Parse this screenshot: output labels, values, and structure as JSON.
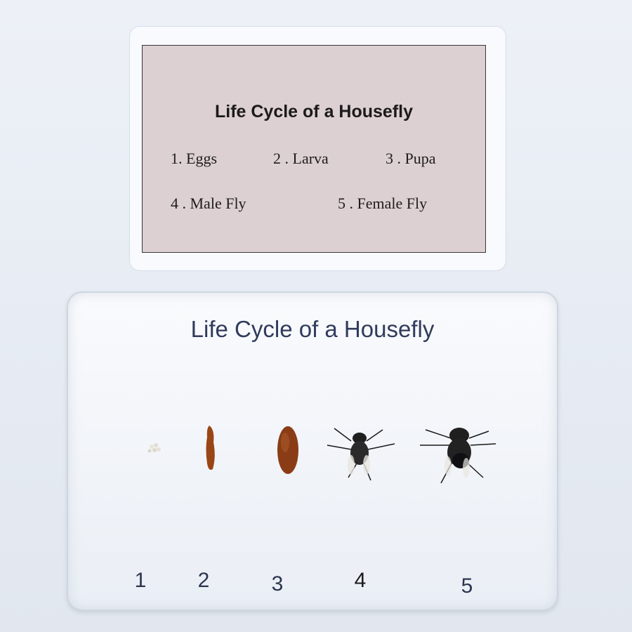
{
  "card": {
    "title": "Life Cycle of a Housefly",
    "items": [
      "1. Eggs",
      "2 . Larva",
      "3 . Pupa",
      "4 . Male Fly",
      "5 . Female Fly"
    ]
  },
  "block": {
    "title": "Life Cycle of a Housefly",
    "numbers": [
      "1",
      "2",
      "3",
      "4",
      "5"
    ]
  },
  "colors": {
    "background": "#e9eef5",
    "card": "#dcd0d3",
    "block_title": "#303b5c",
    "specimen_brown": "#8a3c16"
  }
}
